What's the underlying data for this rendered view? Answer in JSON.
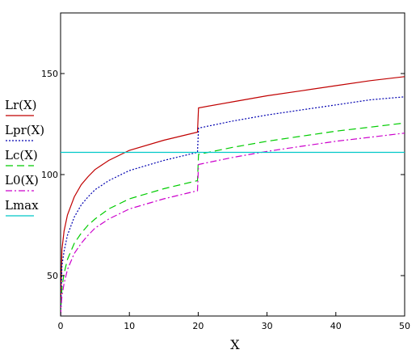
{
  "chart_data": {
    "type": "line",
    "xlabel": "X",
    "ylabel": "",
    "xlim": [
      0,
      50
    ],
    "ylim": [
      30,
      180
    ],
    "xticks": [
      "0",
      "10",
      "20",
      "30",
      "40",
      "50"
    ],
    "yticks": [
      "50",
      "100",
      "150"
    ],
    "ytick_values": [
      50,
      100,
      150
    ],
    "xtick_values": [
      0,
      10,
      20,
      30,
      40,
      50
    ],
    "grid": false,
    "legend_position": "left",
    "series": [
      {
        "name": "Lr(X)",
        "color": "#c00000",
        "dash": "solid",
        "points": [
          [
            0,
            33
          ],
          [
            0.2,
            63
          ],
          [
            0.5,
            72
          ],
          [
            1,
            80
          ],
          [
            2,
            89
          ],
          [
            3,
            95
          ],
          [
            4,
            99
          ],
          [
            5,
            102.5
          ],
          [
            7,
            107
          ],
          [
            10,
            112
          ],
          [
            15,
            117
          ],
          [
            19.9,
            121
          ],
          [
            20.05,
            133
          ],
          [
            25,
            136
          ],
          [
            30,
            139
          ],
          [
            35,
            141.5
          ],
          [
            40,
            144
          ],
          [
            45,
            146.5
          ],
          [
            50,
            148.5
          ]
        ]
      },
      {
        "name": "Lpr(X)",
        "color": "#0000b0",
        "dash": "dotted",
        "points": [
          [
            0,
            30
          ],
          [
            0.2,
            55
          ],
          [
            0.5,
            62
          ],
          [
            1,
            70
          ],
          [
            2,
            79
          ],
          [
            3,
            85
          ],
          [
            4,
            89
          ],
          [
            5,
            92.5
          ],
          [
            7,
            97
          ],
          [
            10,
            102
          ],
          [
            15,
            107
          ],
          [
            19.9,
            111
          ],
          [
            20.05,
            123
          ],
          [
            25,
            126.5
          ],
          [
            30,
            129.5
          ],
          [
            35,
            132
          ],
          [
            40,
            134.5
          ],
          [
            45,
            137
          ],
          [
            50,
            138.5
          ]
        ]
      },
      {
        "name": "Lc(X)",
        "color": "#00cc00",
        "dash": "dashed",
        "points": [
          [
            0,
            30
          ],
          [
            0.2,
            44
          ],
          [
            0.5,
            51
          ],
          [
            1,
            58
          ],
          [
            2,
            66
          ],
          [
            3,
            71
          ],
          [
            4,
            75
          ],
          [
            5,
            78
          ],
          [
            7,
            83
          ],
          [
            10,
            88
          ],
          [
            15,
            93
          ],
          [
            19.9,
            97
          ],
          [
            20.05,
            110
          ],
          [
            25,
            113.5
          ],
          [
            30,
            116.5
          ],
          [
            35,
            119
          ],
          [
            40,
            121.5
          ],
          [
            45,
            123.5
          ],
          [
            50,
            125.5
          ]
        ]
      },
      {
        "name": "L0(X)",
        "color": "#cc00cc",
        "dash": "dashdot",
        "points": [
          [
            0,
            30
          ],
          [
            0.2,
            40
          ],
          [
            0.5,
            46
          ],
          [
            1,
            53
          ],
          [
            2,
            61
          ],
          [
            3,
            66
          ],
          [
            4,
            70
          ],
          [
            5,
            73.5
          ],
          [
            7,
            78
          ],
          [
            10,
            83
          ],
          [
            15,
            88
          ],
          [
            19.9,
            92
          ],
          [
            20.05,
            105
          ],
          [
            25,
            108.5
          ],
          [
            30,
            111.5
          ],
          [
            35,
            114
          ],
          [
            40,
            116.5
          ],
          [
            45,
            118.5
          ],
          [
            50,
            120.5
          ]
        ]
      },
      {
        "name": "Lmax",
        "color": "#00c8c8",
        "dash": "solid",
        "points": [
          [
            0,
            111
          ],
          [
            50,
            111
          ]
        ]
      }
    ]
  }
}
